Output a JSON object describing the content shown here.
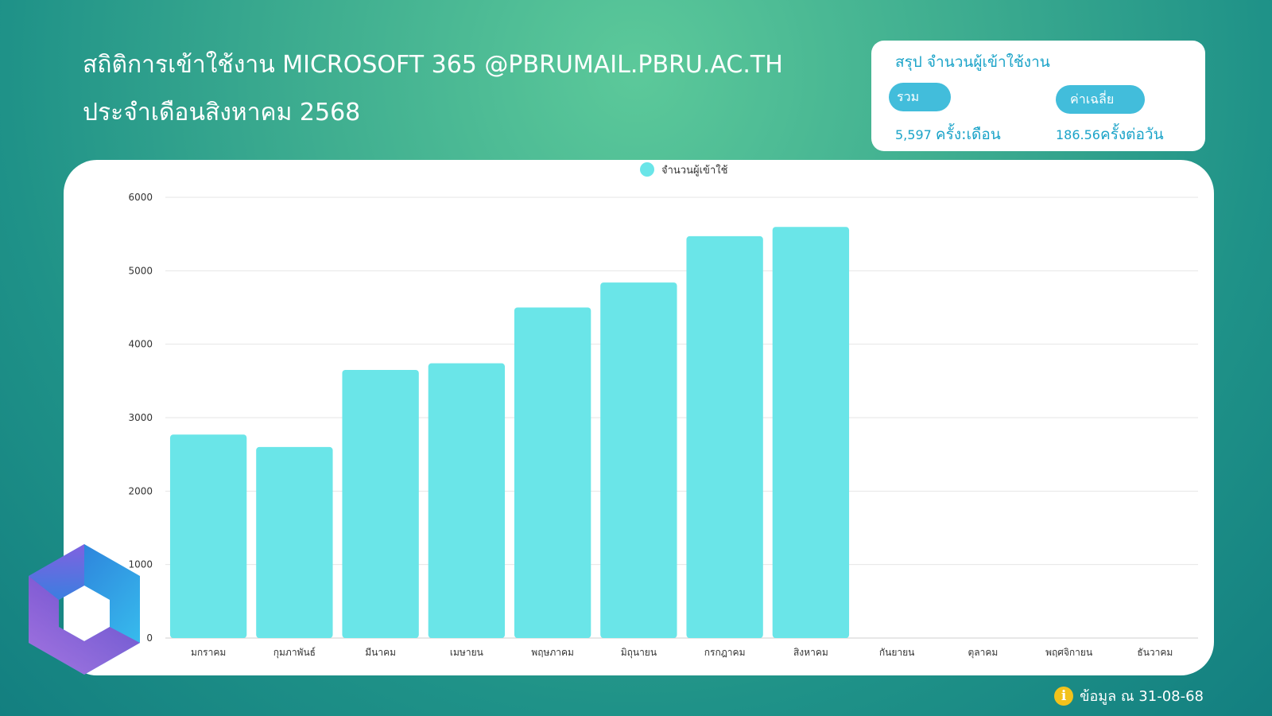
{
  "header": {
    "title_line1": "สถิติการเข้าใช้งาน MICROSOFT 365 @PBRUMAIL.PBRU.AC.TH",
    "title_line2": "ประจำเดือนสิงหาคม 2568"
  },
  "summary": {
    "heading": "สรุป จำนวนผู้เข้าใช้งาน",
    "total_label": "รวม",
    "total_value": "5,597",
    "total_unit": "ครั้ง:เดือน",
    "avg_label": "ค่าเฉลี่ย",
    "avg_value": "186.56",
    "avg_unit": "ครั้งต่อวัน"
  },
  "footer": {
    "info_icon": "info-icon",
    "note": "ข้อมูล ณ 31-08-68"
  },
  "logo_icon": "microsoft-365-logo",
  "colors": {
    "bar": "#6ae5e8",
    "accent": "#1aa3c8",
    "pill": "#42bddb"
  },
  "chart_data": {
    "type": "bar",
    "categories": [
      "มกราคม",
      "กุมภาพันธ์",
      "มีนาคม",
      "เมษายน",
      "พฤษภาคม",
      "มิถุนายน",
      "กรกฎาคม",
      "สิงหาคม",
      "กันยายน",
      "ตุลาคม",
      "พฤศจิกายน",
      "ธันวาคม"
    ],
    "series": [
      {
        "name": "จำนวนผู้เข้าใช้",
        "values": [
          2770,
          2600,
          3650,
          3740,
          4500,
          4840,
          5470,
          5597,
          null,
          null,
          null,
          null
        ]
      }
    ],
    "yticks": [
      0,
      1000,
      2000,
      3000,
      4000,
      5000,
      6000
    ],
    "ylim": [
      0,
      6000
    ],
    "grid": true,
    "legend": "top-center"
  }
}
